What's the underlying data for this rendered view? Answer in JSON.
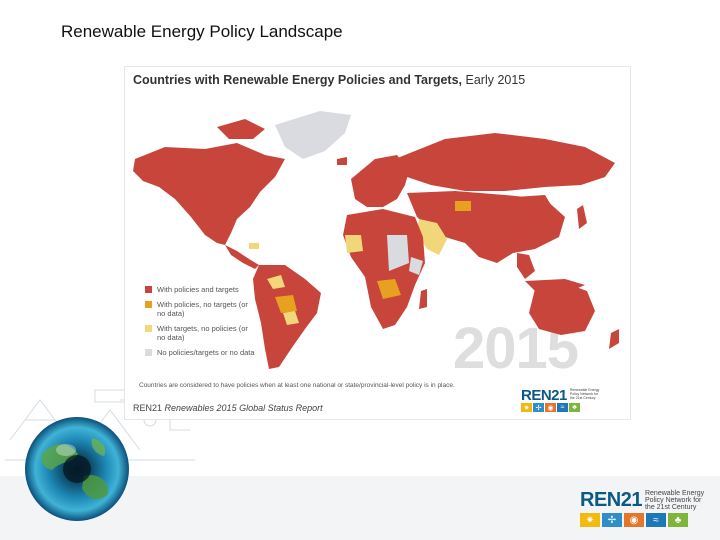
{
  "slide": {
    "title": "Renewable Energy Policy Landscape"
  },
  "map": {
    "title_bold": "Countries with Renewable Energy Policies and Targets,",
    "title_rest": " Early 2015",
    "watermark_year": "2015",
    "legend": [
      {
        "label": "With policies and targets",
        "color": "#c7453b"
      },
      {
        "label": "With policies, no targets (or no data)",
        "color": "#e8a020"
      },
      {
        "label": "With targets, no policies (or no data)",
        "color": "#f1d77a"
      },
      {
        "label": "No policies/targets or no data",
        "color": "#d9dbe1"
      }
    ],
    "footnote": "Countries are considered to have policies when at least one national or state/provincial-level policy is in place.",
    "source_org": "REN21 ",
    "source_report": "Renewables 2015 Global Status Report"
  },
  "logo": {
    "word": "REN",
    "number": "21",
    "tagline": "Renewable Energy Policy Network for the 21st Century",
    "icons": [
      {
        "name": "solar-icon",
        "glyph": "✷",
        "color": "#f2b90f"
      },
      {
        "name": "wind-icon",
        "glyph": "✢",
        "color": "#2f8ec9"
      },
      {
        "name": "geothermal-icon",
        "glyph": "◉",
        "color": "#e3762a"
      },
      {
        "name": "hydro-icon",
        "glyph": "≈",
        "color": "#1d77b8"
      },
      {
        "name": "biomass-icon",
        "glyph": "♣",
        "color": "#7fb53a"
      }
    ]
  }
}
